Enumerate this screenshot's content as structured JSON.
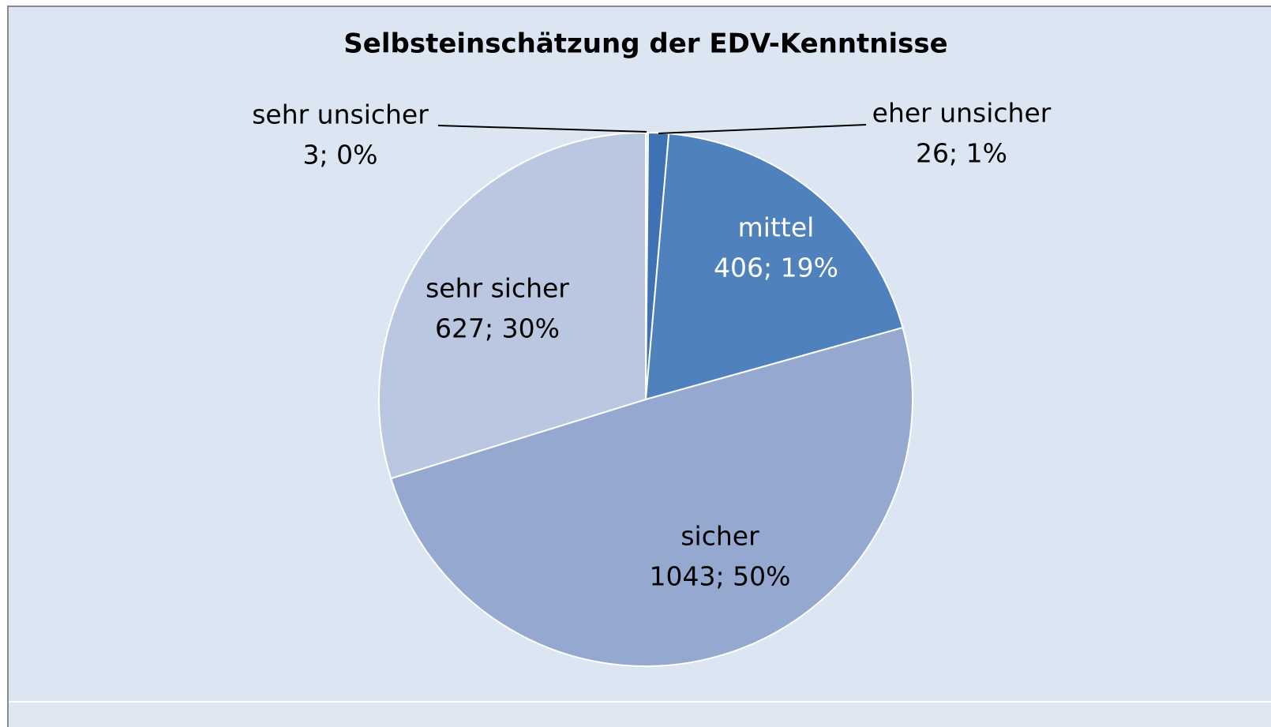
{
  "chart_data": {
    "type": "pie",
    "title": "Selbsteinschätzung der EDV-Kenntnisse",
    "categories": [
      "sehr unsicher",
      "eher unsicher",
      "mittel",
      "sicher",
      "sehr sicher"
    ],
    "values": [
      3,
      26,
      406,
      1043,
      627
    ],
    "value_labels": [
      "3; 0%",
      "26; 1%",
      "406; 19%",
      "1043; 50%",
      "627; 30%"
    ],
    "colors": [
      "#dbe4f1",
      "#3f72b4",
      "#4f81bd",
      "#95a9d0",
      "#b9c7e0"
    ]
  }
}
